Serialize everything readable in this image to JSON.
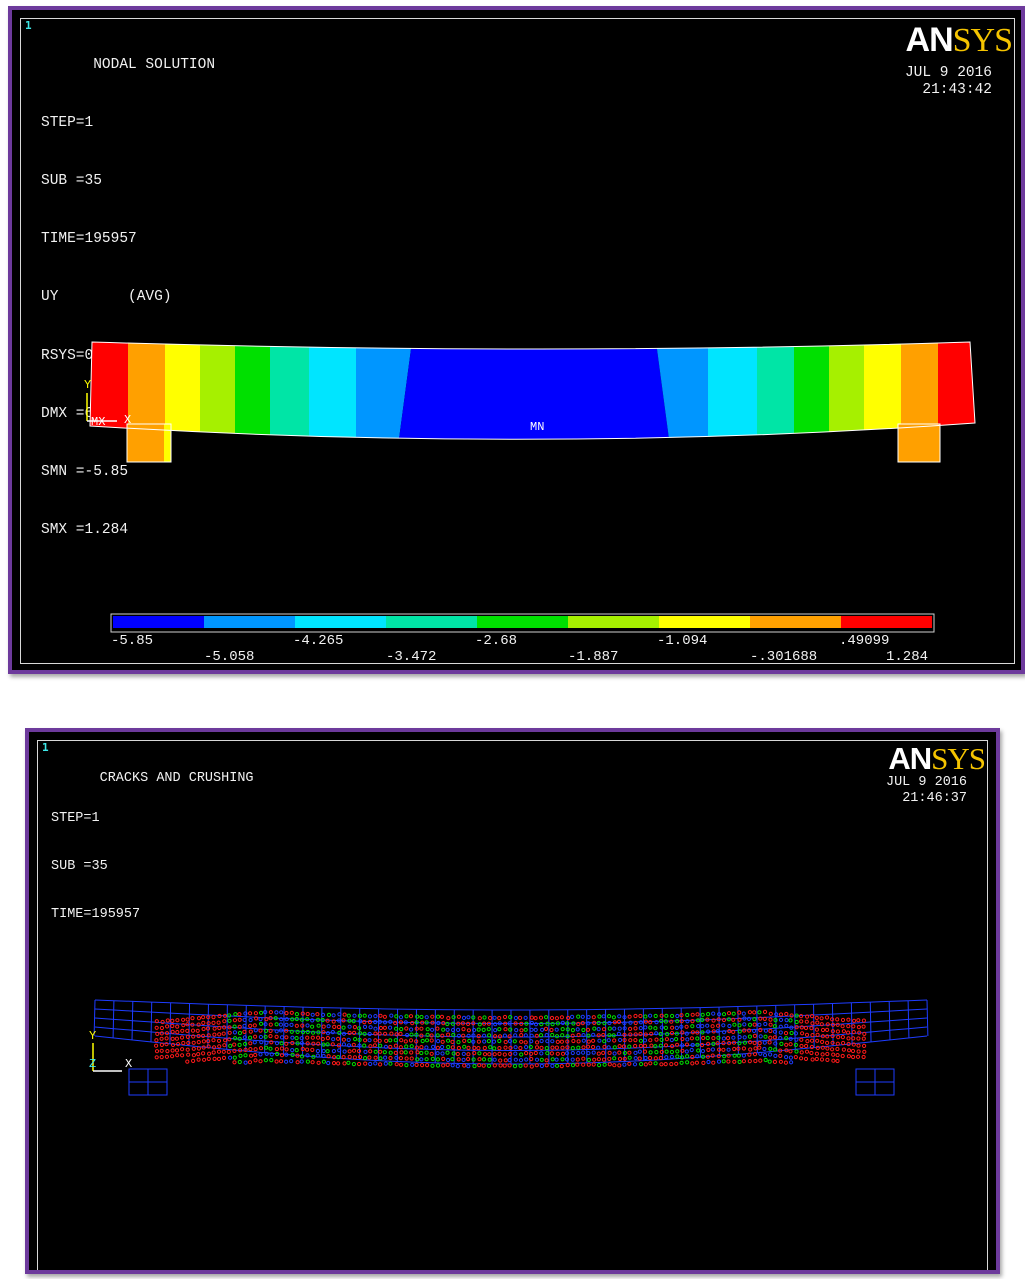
{
  "plot1": {
    "window_number": "1",
    "title": "NODAL SOLUTION",
    "info_lines": [
      "STEP=1",
      "SUB =35",
      "TIME=195957",
      "UY        (AVG)",
      "RSYS=0",
      "DMX =6.382",
      "SMN =-5.85",
      "SMX =1.284"
    ],
    "logo_an": "AN",
    "logo_sys": "SYS",
    "date": "JUL  9 2016",
    "time": "21:43:42",
    "triad": {
      "y": "Y",
      "mx": "MX",
      "x": "X"
    },
    "min_label": "MN",
    "legend": {
      "colors": [
        "#0000ff",
        "#0096ff",
        "#00e5ff",
        "#00e5a6",
        "#00e000",
        "#a6f000",
        "#ffff00",
        "#ffa000",
        "#ff0000"
      ],
      "top_labels": [
        "-5.85",
        "-4.265",
        "-2.68",
        "-1.094",
        ".49099"
      ],
      "bottom_labels": [
        "-5.058",
        "-3.472",
        "-1.887",
        "-.301688",
        "1.284"
      ]
    }
  },
  "plot2": {
    "window_number": "1",
    "title": "CRACKS AND CRUSHING",
    "info_lines": [
      "STEP=1",
      "SUB =35",
      "TIME=195957"
    ],
    "logo_an": "AN",
    "logo_sys": "SYS",
    "date": "JUL  9 2016",
    "time": "21:46:37",
    "triad": {
      "y": "Y",
      "z": "Z",
      "x": "X"
    },
    "mesh_color": "#1e3cff",
    "crack_colors": [
      "#ff1a1a",
      "#00dd00",
      "#1e3cff"
    ]
  }
}
